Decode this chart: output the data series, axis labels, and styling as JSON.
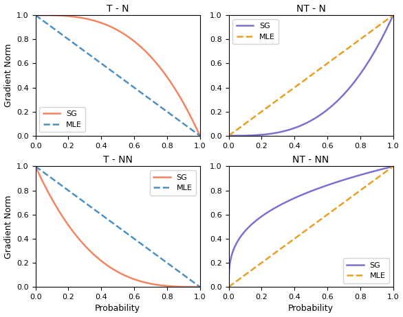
{
  "titles": [
    "T - N",
    "NT - N",
    "T - NN",
    "NT - NN"
  ],
  "xlabel": "Probability",
  "ylabel": "Gradient Norm",
  "sg_color_left": "#F4845F",
  "sg_color_right": "#7B6FD0",
  "mle_color_left": "#4A90C4",
  "mle_color_right": "#E8A020",
  "sg_label": "SG",
  "mle_label": "MLE",
  "xlim": [
    0.0,
    1.0
  ],
  "ylim": [
    0.0,
    1.0
  ],
  "linewidth": 1.8,
  "legend_fontsize": 8,
  "tick_fontsize": 8,
  "label_fontsize": 9,
  "title_fontsize": 10
}
